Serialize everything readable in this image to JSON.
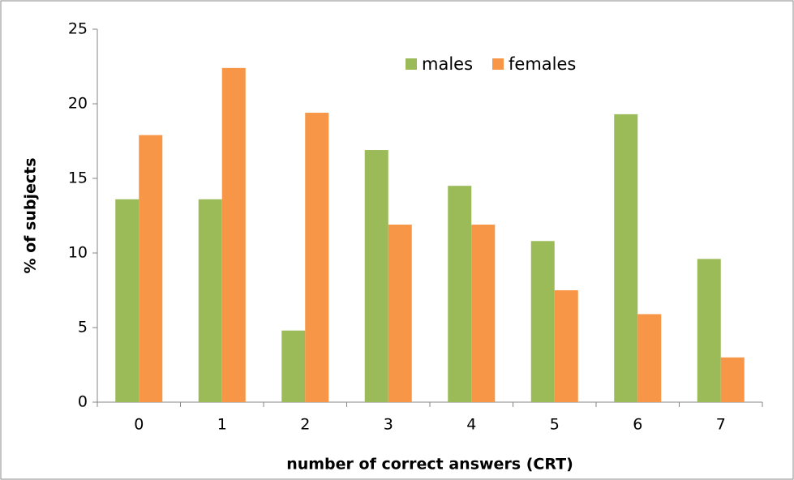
{
  "chart_data": {
    "type": "bar",
    "xlabel": "number of correct answers (CRT)",
    "ylabel": "% of subjects",
    "categories": [
      "0",
      "1",
      "2",
      "3",
      "4",
      "5",
      "6",
      "7"
    ],
    "series": [
      {
        "name": "males",
        "color": "#9bbb59",
        "values": [
          13.6,
          13.6,
          4.8,
          16.9,
          14.5,
          10.8,
          19.3,
          9.6
        ]
      },
      {
        "name": "females",
        "color": "#f79646",
        "values": [
          17.9,
          22.4,
          19.4,
          11.9,
          11.9,
          7.5,
          5.9,
          3.0
        ]
      }
    ],
    "ylim": [
      0,
      25
    ],
    "yticks": [
      0,
      5,
      10,
      15,
      20,
      25
    ],
    "grid": false,
    "legend": "top"
  }
}
